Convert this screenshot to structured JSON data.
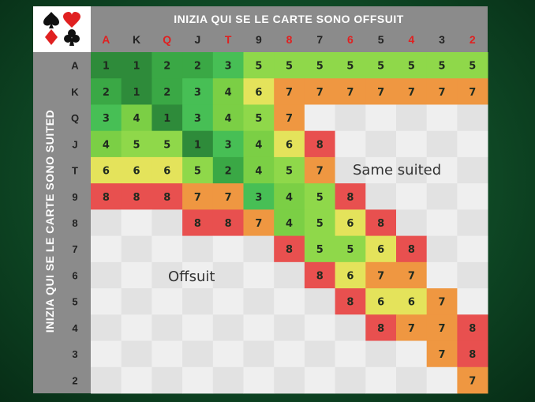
{
  "chart_data": {
    "type": "heatmap",
    "top_title": "INIZIA QUI SE LE CARTE SONO OFFSUIT",
    "side_title": "INIZIA QUI SE LE CARTE SONO SUITED",
    "label_same_suited": "Same suited",
    "label_offsuit": "Offsuit",
    "suits_icon": [
      "spade",
      "heart",
      "diamond",
      "club"
    ],
    "columns": [
      "A",
      "K",
      "Q",
      "J",
      "T",
      "9",
      "8",
      "7",
      "6",
      "5",
      "4",
      "3",
      "2"
    ],
    "column_label_colors": [
      "red",
      "black",
      "red",
      "black",
      "red",
      "black",
      "red",
      "black",
      "red",
      "black",
      "red",
      "black",
      "red"
    ],
    "rows": [
      "A",
      "K",
      "Q",
      "J",
      "T",
      "9",
      "8",
      "7",
      "6",
      "5",
      "4",
      "3",
      "2"
    ],
    "values": [
      [
        1,
        1,
        2,
        2,
        3,
        5,
        5,
        5,
        5,
        5,
        5,
        5,
        5
      ],
      [
        2,
        1,
        2,
        3,
        4,
        6,
        7,
        7,
        7,
        7,
        7,
        7,
        7
      ],
      [
        3,
        4,
        1,
        3,
        4,
        5,
        7,
        null,
        null,
        null,
        null,
        null,
        null
      ],
      [
        4,
        5,
        5,
        1,
        3,
        4,
        6,
        8,
        null,
        null,
        null,
        null,
        null
      ],
      [
        6,
        6,
        6,
        5,
        2,
        4,
        5,
        7,
        null,
        null,
        null,
        null,
        null
      ],
      [
        8,
        8,
        8,
        7,
        7,
        3,
        4,
        5,
        8,
        null,
        null,
        null,
        null
      ],
      [
        null,
        null,
        null,
        8,
        8,
        7,
        4,
        5,
        6,
        8,
        null,
        null,
        null
      ],
      [
        null,
        null,
        null,
        null,
        null,
        null,
        8,
        5,
        5,
        6,
        8,
        null,
        null
      ],
      [
        null,
        null,
        null,
        null,
        null,
        null,
        null,
        8,
        6,
        7,
        7,
        null,
        null
      ],
      [
        null,
        null,
        null,
        null,
        null,
        null,
        null,
        null,
        8,
        6,
        6,
        7,
        null
      ],
      [
        null,
        null,
        null,
        null,
        null,
        null,
        null,
        null,
        null,
        8,
        7,
        7,
        8
      ],
      [
        null,
        null,
        null,
        null,
        null,
        null,
        null,
        null,
        null,
        null,
        null,
        7,
        8
      ],
      [
        null,
        null,
        null,
        null,
        null,
        null,
        null,
        null,
        null,
        null,
        null,
        null,
        7
      ]
    ],
    "value_colors": {
      "1": "#2e8b3a",
      "2": "#3aa845",
      "3": "#47bf55",
      "4": "#7bcf45",
      "5": "#8fd84a",
      "6": "#e4e35b",
      "7": "#ef9741",
      "8": "#e8504f"
    },
    "empty_colors": [
      "#e2e2e2",
      "#efefef"
    ],
    "header_color": "#8b8b8b",
    "label_red": "#e02020",
    "label_black": "#222222"
  }
}
